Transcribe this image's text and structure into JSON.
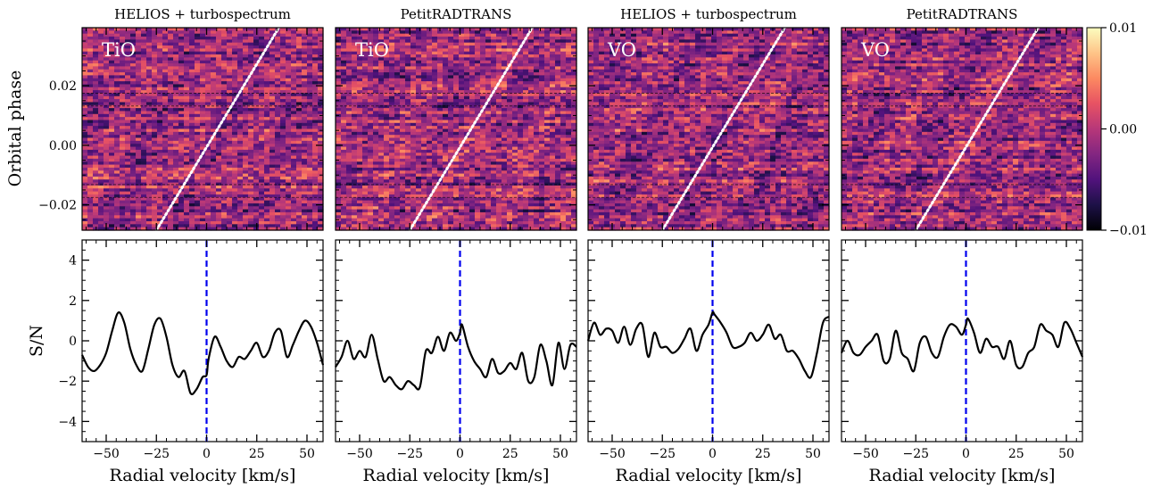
{
  "chart_data": {
    "type": "heatmap",
    "shared": {
      "xlabel": "Radial velocity [km/s]",
      "top_ylabel": "Orbital phase",
      "bottom_ylabel": "S/N",
      "xlim": [
        -62,
        58
      ],
      "xticks": [
        -50,
        -25,
        0,
        25,
        50
      ],
      "xtick_labels": [
        "−50",
        "−25",
        "0",
        "25",
        "50"
      ],
      "top_ylim": [
        -0.0285,
        0.0395
      ],
      "top_yticks": [
        -0.02,
        0.0,
        0.02
      ],
      "top_ytick_labels": [
        "−0.02",
        "0.00",
        "0.02"
      ],
      "bottom_ylim": [
        -5,
        5
      ],
      "bottom_yticks": [
        -4,
        -2,
        0,
        2,
        4
      ],
      "bottom_ytick_labels": [
        "−4",
        "−2",
        "0",
        "2",
        "4"
      ],
      "transit_phases": [
        -0.0175,
        -0.0132,
        0.0132,
        0.0175
      ],
      "planet_trail": {
        "phase_start": -0.0285,
        "phase_end": 0.0395,
        "vel_at_start": -25,
        "vel_at_end": 36
      },
      "vline_x": 0,
      "colorbar": {
        "colormap": "magma",
        "range": [
          -0.01,
          0.01
        ],
        "ticks": [
          0.01,
          0.0,
          -0.01
        ],
        "tick_labels": [
          "0.01",
          "0.00",
          "−0.01"
        ]
      }
    },
    "panels": [
      {
        "title": "HELIOS + turbospectrum",
        "species": "TiO",
        "sn_x": [
          -62,
          -59,
          -56,
          -53,
          -50,
          -47,
          -44,
          -41,
          -38,
          -35,
          -32,
          -29,
          -26,
          -23,
          -20,
          -17,
          -14,
          -11,
          -8,
          -5,
          -2,
          0,
          1,
          4,
          7,
          10,
          13,
          16,
          19,
          22,
          25,
          28,
          31,
          34,
          37,
          40,
          43,
          46,
          49,
          52,
          55,
          58
        ],
        "sn_y": [
          -0.7,
          -1.3,
          -1.5,
          -1.2,
          -0.6,
          0.5,
          1.4,
          0.9,
          -0.4,
          -1.2,
          -1.5,
          -0.4,
          0.8,
          1.1,
          0.2,
          -1.2,
          -1.8,
          -1.5,
          -2.6,
          -2.4,
          -1.8,
          -1.7,
          -0.9,
          0.2,
          -0.3,
          -1.0,
          -1.3,
          -0.8,
          -0.9,
          -0.5,
          -0.1,
          -0.8,
          -0.5,
          0.4,
          0.5,
          -0.8,
          -0.2,
          0.5,
          1.0,
          0.7,
          -0.1,
          -1.2
        ]
      },
      {
        "title": "PetitRADTRANS",
        "species": "TiO",
        "sn_x": [
          -62,
          -59,
          -56,
          -53,
          -50,
          -47,
          -44,
          -41,
          -38,
          -35,
          -32,
          -29,
          -26,
          -23,
          -20,
          -17,
          -14,
          -11,
          -8,
          -5,
          -2,
          0,
          1,
          4,
          7,
          10,
          13,
          16,
          19,
          22,
          25,
          28,
          31,
          34,
          37,
          40,
          43,
          46,
          49,
          52,
          55,
          58
        ],
        "sn_y": [
          -1.3,
          -0.8,
          0.0,
          -0.9,
          -0.5,
          -0.8,
          0.3,
          -0.9,
          -2.0,
          -1.8,
          -2.2,
          -2.4,
          -2.0,
          -2.2,
          -2.3,
          -0.5,
          -0.6,
          0.2,
          -0.5,
          0.4,
          0.0,
          0.4,
          0.8,
          -0.3,
          -1.0,
          -1.4,
          -1.8,
          -0.9,
          -1.6,
          -1.5,
          -1.1,
          -1.4,
          -0.6,
          -2.0,
          -1.8,
          -0.2,
          -1.0,
          -2.2,
          -0.1,
          -1.4,
          -0.2,
          -0.3
        ]
      },
      {
        "title": "HELIOS + turbospectrum",
        "species": "VO",
        "sn_x": [
          -62,
          -59,
          -56,
          -53,
          -50,
          -47,
          -44,
          -41,
          -38,
          -35,
          -32,
          -29,
          -26,
          -23,
          -20,
          -17,
          -14,
          -11,
          -8,
          -5,
          -2,
          0,
          1,
          4,
          7,
          10,
          13,
          16,
          19,
          22,
          25,
          28,
          31,
          34,
          37,
          40,
          43,
          46,
          49,
          52,
          55,
          58
        ],
        "sn_y": [
          0.0,
          0.9,
          0.3,
          0.6,
          0.5,
          -0.1,
          0.7,
          -0.2,
          0.6,
          0.8,
          -0.8,
          0.4,
          -0.3,
          -0.3,
          -0.6,
          -0.4,
          0.1,
          0.6,
          -0.5,
          0.3,
          0.8,
          1.4,
          1.3,
          0.9,
          0.4,
          -0.3,
          -0.3,
          -0.1,
          0.4,
          0.0,
          0.3,
          0.8,
          0.1,
          0.3,
          -0.5,
          -0.5,
          -0.9,
          -1.5,
          -1.8,
          -0.6,
          0.9,
          1.2
        ]
      },
      {
        "title": "PetitRADTRANS",
        "species": "VO",
        "sn_x": [
          -62,
          -59,
          -56,
          -53,
          -50,
          -47,
          -44,
          -41,
          -38,
          -35,
          -32,
          -29,
          -26,
          -23,
          -20,
          -17,
          -14,
          -11,
          -8,
          -5,
          -2,
          0,
          1,
          4,
          7,
          10,
          13,
          16,
          19,
          22,
          25,
          28,
          31,
          34,
          37,
          40,
          43,
          46,
          49,
          52,
          55,
          58
        ],
        "sn_y": [
          -0.6,
          0.0,
          -0.6,
          -0.7,
          -0.3,
          0.0,
          0.3,
          -1.0,
          -0.9,
          0.5,
          -0.6,
          -0.9,
          -1.5,
          -0.1,
          0.2,
          -0.6,
          -0.8,
          0.2,
          0.8,
          0.7,
          0.3,
          0.8,
          1.1,
          0.4,
          -0.6,
          0.1,
          -0.3,
          -0.3,
          -0.9,
          0.0,
          -1.2,
          -1.3,
          -0.6,
          -0.3,
          0.8,
          0.5,
          0.3,
          -0.3,
          0.9,
          0.6,
          -0.1,
          -0.8
        ]
      }
    ]
  }
}
